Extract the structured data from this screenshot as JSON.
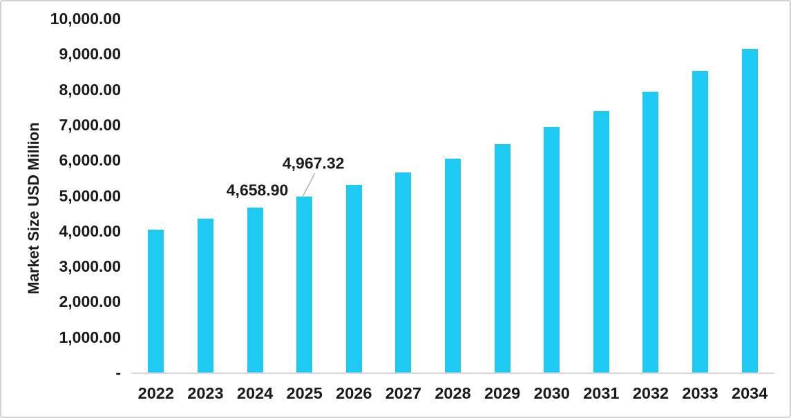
{
  "chart_data": {
    "type": "bar",
    "title": "",
    "ylabel": "Market Size USD Million",
    "xlabel": "",
    "categories": [
      "2022",
      "2023",
      "2024",
      "2025",
      "2026",
      "2027",
      "2028",
      "2029",
      "2030",
      "2031",
      "2032",
      "2033",
      "2034"
    ],
    "values": [
      4040,
      4350,
      4658.9,
      4967.32,
      5300,
      5660,
      6040,
      6455,
      6930,
      7390,
      7930,
      8520,
      9140
    ],
    "data_labels": [
      {
        "category": "2024",
        "label": "4,658.90",
        "leader_line": false
      },
      {
        "category": "2025",
        "label": "4,967.32",
        "leader_line": true
      }
    ],
    "ytick_labels": [
      "10,000.00",
      "9,000.00",
      "8,000.00",
      "7,000.00",
      "6,000.00",
      "5,000.00",
      "4,000.00",
      "3,000.00",
      "2,000.00",
      "1,000.00",
      "-"
    ],
    "ytick_values": [
      10000,
      9000,
      8000,
      7000,
      6000,
      5000,
      4000,
      3000,
      2000,
      1000,
      0
    ],
    "ylim": [
      0,
      10000
    ],
    "grid": false,
    "legend": false,
    "colors": {
      "bar": "#1EC9F2",
      "axis_line": "#D9D9D9",
      "text": "#1A1A1A",
      "leader_line": "#A6A6A6",
      "frame_border": "#D2D2D2"
    }
  }
}
